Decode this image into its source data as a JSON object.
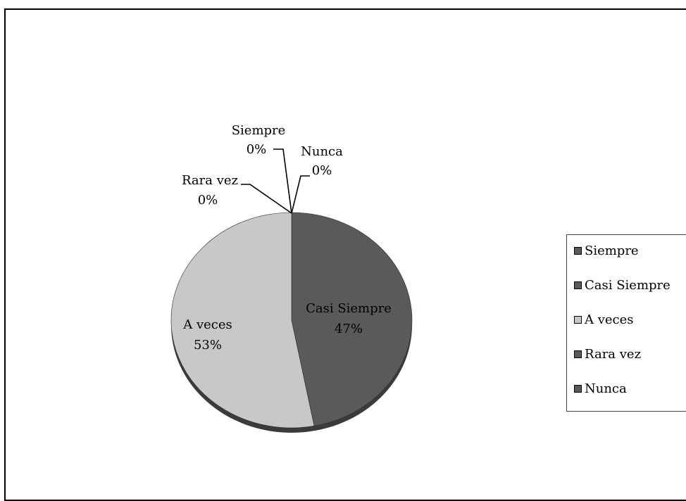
{
  "chart_data": {
    "type": "pie",
    "categories": [
      "Siempre",
      "Casi Siempre",
      "A veces",
      "Rara vez",
      "Nunca"
    ],
    "values": [
      0,
      47,
      53,
      0,
      0
    ],
    "labels": [
      {
        "name": "Siempre",
        "percent": "0%"
      },
      {
        "name": "Casi Siempre",
        "percent": "47%"
      },
      {
        "name": "A veces",
        "percent": "53%"
      },
      {
        "name": "Rara vez",
        "percent": "0%"
      },
      {
        "name": "Nunca",
        "percent": "0%"
      }
    ],
    "colors": [
      "#5a5a5a",
      "#5a5a5a",
      "#c8c8c8",
      "#5a5a5a",
      "#5a5a5a"
    ],
    "legend_position": "right",
    "style": "3d-tilted"
  }
}
